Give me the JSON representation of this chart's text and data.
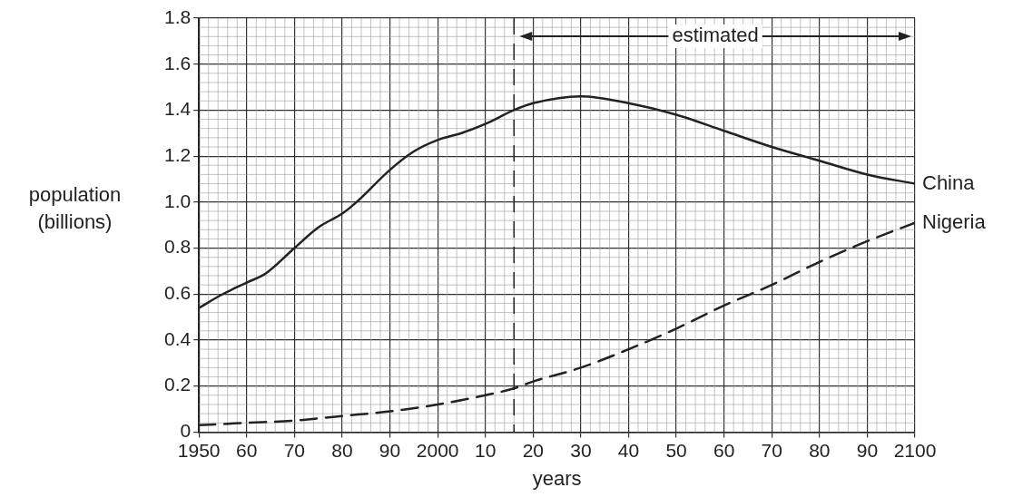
{
  "chart_data": {
    "type": "line",
    "xlabel": "years",
    "ylabel": "population (billions)",
    "xlim": [
      1950,
      2100
    ],
    "ylim": [
      0,
      1.8
    ],
    "xticks": [
      1950,
      {
        "value": 1960,
        "label": "60"
      },
      {
        "value": 1970,
        "label": "70"
      },
      {
        "value": 1980,
        "label": "80"
      },
      {
        "value": 1990,
        "label": "90"
      },
      2000,
      {
        "value": 2010,
        "label": "10"
      },
      {
        "value": 2020,
        "label": "20"
      },
      {
        "value": 2030,
        "label": "30"
      },
      {
        "value": 2040,
        "label": "40"
      },
      {
        "value": 2050,
        "label": "50"
      },
      {
        "value": 2060,
        "label": "60"
      },
      {
        "value": 2070,
        "label": "70"
      },
      {
        "value": 2080,
        "label": "80"
      },
      {
        "value": 2090,
        "label": "90"
      },
      2100
    ],
    "yticks": [
      0,
      0.2,
      0.4,
      0.6,
      0.8,
      {
        "value": 1,
        "label": "1.0"
      },
      1.2,
      1.4,
      1.6,
      1.8
    ],
    "series": [
      {
        "name": "China",
        "color": "#222222",
        "line_style": "solid",
        "x": [
          1950,
          1955,
          1960,
          1964,
          1970,
          1975,
          1980,
          1983,
          1990,
          1995,
          2000,
          2005,
          2010,
          2016,
          2020,
          2030,
          2040,
          2050,
          2060,
          2070,
          2080,
          2090,
          2100
        ],
        "values": [
          0.54,
          0.6,
          0.65,
          0.69,
          0.8,
          0.89,
          0.95,
          1.0,
          1.14,
          1.22,
          1.27,
          1.3,
          1.34,
          1.4,
          1.43,
          1.46,
          1.43,
          1.38,
          1.31,
          1.24,
          1.18,
          1.12,
          1.08
        ]
      },
      {
        "name": "Nigeria",
        "color": "#222222",
        "line_style": "dashed",
        "x": [
          1950,
          1960,
          1970,
          1980,
          1990,
          2000,
          2010,
          2016,
          2020,
          2030,
          2040,
          2050,
          2060,
          2070,
          2080,
          2090,
          2100
        ],
        "values": [
          0.03,
          0.04,
          0.05,
          0.07,
          0.09,
          0.12,
          0.16,
          0.19,
          0.22,
          0.28,
          0.36,
          0.45,
          0.55,
          0.64,
          0.74,
          0.83,
          0.91
        ]
      }
    ],
    "ref_lines": [
      {
        "axis": "x",
        "value": 2016,
        "line_style": "dashed",
        "color": "#222222"
      }
    ],
    "annotations": [
      "estimated"
    ],
    "grid": true,
    "legend": false,
    "marker": "none"
  }
}
